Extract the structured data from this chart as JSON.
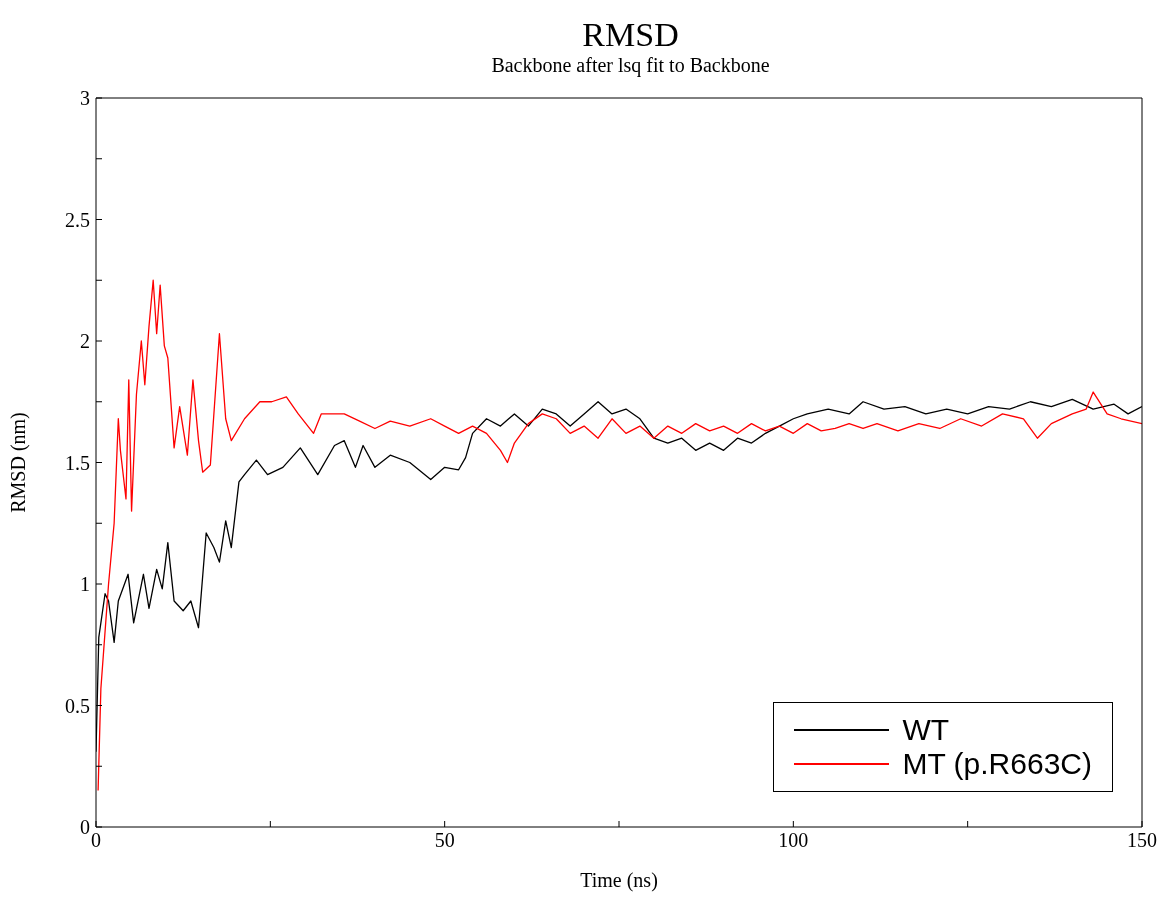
{
  "chart_data": {
    "type": "line",
    "title": "RMSD",
    "subtitle": "Backbone after lsq fit to Backbone",
    "xlabel": "Time (ns)",
    "ylabel": "RMSD (nm)",
    "xlim": [
      0,
      150
    ],
    "xticks": [
      0,
      {
        "value": 25,
        "label": null
      },
      50,
      {
        "value": 75,
        "label": null
      },
      100,
      {
        "value": 125,
        "label": null
      },
      150
    ],
    "ylim": [
      0,
      3
    ],
    "yticks": [
      0,
      {
        "value": 0.25,
        "label": null
      },
      0.5,
      {
        "value": 0.75,
        "label": null
      },
      1,
      {
        "value": 1.25,
        "label": null
      },
      1.5,
      {
        "value": 1.75,
        "label": null
      },
      2,
      {
        "value": 2.25,
        "label": null
      },
      2.5,
      {
        "value": 2.75,
        "label": null
      },
      3
    ],
    "legend": "bottom right",
    "marker": "none",
    "line_style": "solid",
    "series": [
      {
        "name": "WT",
        "color": "#000000",
        "x": [
          0,
          0.4,
          1.3,
          1.8,
          2.6,
          3.2,
          4.6,
          5.4,
          6.8,
          7.6,
          8.7,
          9.5,
          10.3,
          11.2,
          12.5,
          13.6,
          14.7,
          15.8,
          16.9,
          17.7,
          18.6,
          19.4,
          20.5,
          21.3,
          23,
          24.6,
          26.8,
          29.3,
          31.8,
          34.2,
          35.6,
          37.2,
          38.3,
          40,
          42.2,
          45,
          48,
          50,
          52,
          53,
          54,
          56,
          58,
          60,
          62,
          64,
          66,
          68,
          70,
          72,
          74,
          76,
          78,
          80,
          82,
          84,
          86,
          88,
          90,
          92,
          94,
          96,
          98,
          100,
          102,
          105,
          108,
          110,
          113,
          116,
          119,
          122,
          125,
          128,
          131,
          134,
          137,
          140,
          143,
          146,
          148,
          150
        ],
        "values": [
          0.31,
          0.78,
          0.96,
          0.93,
          0.76,
          0.93,
          1.04,
          0.84,
          1.04,
          0.9,
          1.06,
          0.98,
          1.17,
          0.93,
          0.89,
          0.93,
          0.82,
          1.21,
          1.15,
          1.09,
          1.26,
          1.15,
          1.42,
          1.45,
          1.51,
          1.45,
          1.48,
          1.56,
          1.45,
          1.57,
          1.59,
          1.48,
          1.57,
          1.48,
          1.53,
          1.5,
          1.43,
          1.48,
          1.47,
          1.52,
          1.62,
          1.68,
          1.65,
          1.7,
          1.65,
          1.72,
          1.7,
          1.65,
          1.7,
          1.75,
          1.7,
          1.72,
          1.68,
          1.6,
          1.58,
          1.6,
          1.55,
          1.58,
          1.55,
          1.6,
          1.58,
          1.62,
          1.65,
          1.68,
          1.7,
          1.72,
          1.7,
          1.75,
          1.72,
          1.73,
          1.7,
          1.72,
          1.7,
          1.73,
          1.72,
          1.75,
          1.73,
          1.76,
          1.72,
          1.74,
          1.7,
          1.73
        ]
      },
      {
        "name": "MT (p.R663C)",
        "color": "#ff0000",
        "x": [
          0.3,
          0.7,
          1.8,
          2.6,
          3.2,
          3.5,
          4.3,
          4.7,
          5.1,
          5.8,
          6.5,
          7,
          7.6,
          8.2,
          8.7,
          9.2,
          9.8,
          10.3,
          11.2,
          12,
          13.1,
          13.9,
          14.7,
          15.3,
          16.4,
          17.7,
          18.6,
          19.4,
          21.3,
          23.5,
          25.2,
          27.3,
          29,
          31.2,
          32.3,
          35.6,
          37.8,
          40,
          42.2,
          45,
          48,
          50,
          52,
          54,
          56,
          58,
          59,
          60,
          62,
          64,
          66,
          68,
          70,
          72,
          74,
          76,
          78,
          80,
          82,
          84,
          86,
          88,
          90,
          92,
          94,
          96,
          98,
          100,
          102,
          104,
          106,
          108,
          110,
          112,
          115,
          118,
          121,
          124,
          127,
          130,
          133,
          135,
          137,
          140,
          142,
          143,
          145,
          147,
          150
        ],
        "values": [
          0.15,
          0.57,
          1.0,
          1.25,
          1.68,
          1.55,
          1.35,
          1.84,
          1.3,
          1.78,
          2.0,
          1.82,
          2.06,
          2.25,
          2.03,
          2.23,
          1.98,
          1.93,
          1.56,
          1.73,
          1.53,
          1.84,
          1.59,
          1.46,
          1.49,
          2.03,
          1.68,
          1.59,
          1.68,
          1.75,
          1.75,
          1.77,
          1.7,
          1.62,
          1.7,
          1.7,
          1.67,
          1.64,
          1.67,
          1.65,
          1.68,
          1.65,
          1.62,
          1.65,
          1.62,
          1.55,
          1.5,
          1.58,
          1.66,
          1.7,
          1.68,
          1.62,
          1.65,
          1.6,
          1.68,
          1.62,
          1.65,
          1.6,
          1.65,
          1.62,
          1.66,
          1.63,
          1.65,
          1.62,
          1.66,
          1.63,
          1.65,
          1.62,
          1.66,
          1.63,
          1.64,
          1.66,
          1.64,
          1.66,
          1.63,
          1.66,
          1.64,
          1.68,
          1.65,
          1.7,
          1.68,
          1.6,
          1.66,
          1.7,
          1.72,
          1.79,
          1.7,
          1.68,
          1.66
        ]
      }
    ]
  }
}
